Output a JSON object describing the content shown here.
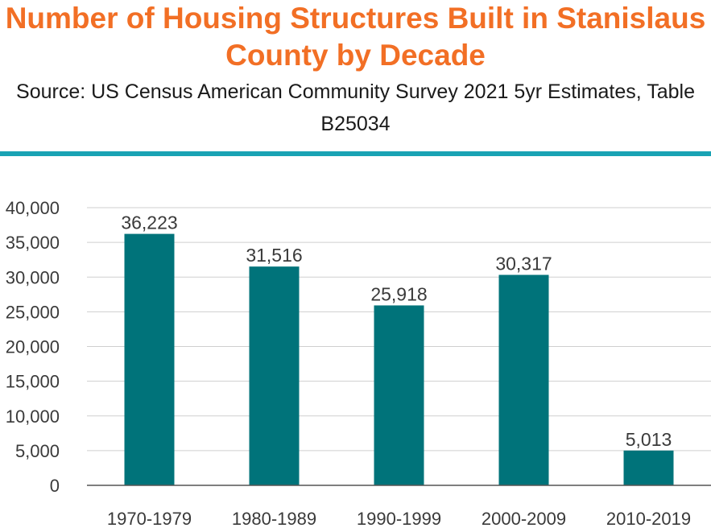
{
  "header": {
    "title": "Number of Housing Structures Built in Stanislaus County by Decade",
    "subtitle": "Source: US Census American Community Survey 2021 5yr Estimates, Table B25034"
  },
  "colors": {
    "title": "#f26f25",
    "rule": "#19a3b4",
    "bar": "#00737a",
    "gridline": "#cfcfcf",
    "axis": "#555555",
    "text": "#3a3a3a"
  },
  "chart_data": {
    "type": "bar",
    "title": "Number of Housing Structures Built in Stanislaus County by Decade",
    "subtitle": "Source: US Census American Community Survey 2021 5yr Estimates, Table B25034",
    "xlabel": "",
    "ylabel": "",
    "categories": [
      "1970-1979",
      "1980-1989",
      "1990-1999",
      "2000-2009",
      "2010-2019"
    ],
    "values": [
      36223,
      31516,
      25918,
      30317,
      5013
    ],
    "value_labels": [
      "36,223",
      "31,516",
      "25,918",
      "30,317",
      "5,013"
    ],
    "ylim": [
      0,
      40000
    ],
    "yticks": [
      0,
      5000,
      10000,
      15000,
      20000,
      25000,
      30000,
      35000,
      40000
    ],
    "ytick_labels": [
      "0",
      "5,000",
      "10,000",
      "15,000",
      "20,000",
      "25,000",
      "30,000",
      "35,000",
      "40,000"
    ],
    "grid": true,
    "legend": "none"
  }
}
